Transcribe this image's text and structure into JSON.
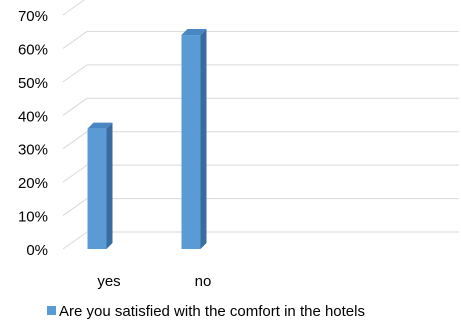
{
  "chart_data": {
    "type": "bar",
    "style": "3d-clustered-column",
    "categories": [
      "yes",
      "no"
    ],
    "series": [
      {
        "name": "Are you satisfied with the comfort in the hotels",
        "values": [
          0.36,
          0.64
        ],
        "color": "#5b9bd5"
      }
    ],
    "ylim": [
      0,
      0.7
    ],
    "y_ticks": [
      0,
      0.1,
      0.2,
      0.3,
      0.4,
      0.5,
      0.6,
      0.7
    ],
    "y_tick_labels": [
      "0%",
      "10%",
      "20%",
      "30%",
      "40%",
      "50%",
      "60%",
      "70%"
    ],
    "grid": true,
    "legend_position": "bottom-left"
  }
}
